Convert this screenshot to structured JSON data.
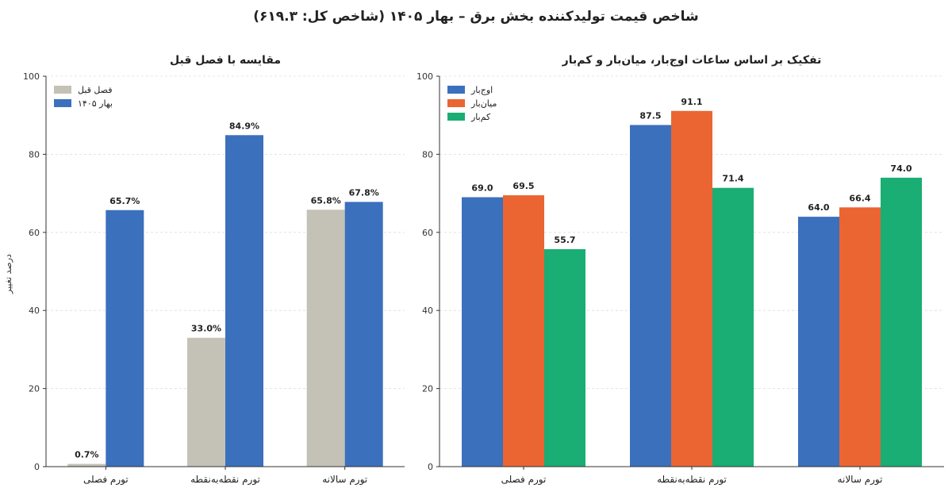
{
  "figure": {
    "title": "شاخص قیمت تولیدکننده بخش برق – بهار ۱۴۰۵ (شاخص کل: ۶۱۹.۳)",
    "ylabel": "درصد تغییر"
  },
  "chart_data": [
    {
      "type": "bar",
      "title": "مقایسه با فصل قبل",
      "categories": [
        "تورم فصلی",
        "تورم نقطه‌به‌نقطه",
        "تورم سالانه"
      ],
      "ylim": [
        0,
        100
      ],
      "yticks": [
        "0",
        "20",
        "40",
        "60",
        "80",
        "100"
      ],
      "grid": true,
      "legend": "top-left",
      "series": [
        {
          "name": "فصل قبل",
          "color": "#c4c2b6",
          "values": [
            0.7,
            33.0,
            65.8
          ],
          "labels": [
            "0.7%",
            "33.0%",
            "65.8%"
          ]
        },
        {
          "name": "بهار ۱۴۰۵",
          "color": "#3b70bd",
          "values": [
            65.7,
            84.9,
            67.8
          ],
          "labels": [
            "65.7%",
            "84.9%",
            "67.8%"
          ]
        }
      ]
    },
    {
      "type": "bar",
      "title": "تفکیک بر اساس ساعات اوج‌بار، میان‌بار و کم‌بار",
      "categories": [
        "تورم فصلی",
        "تورم نقطه‌به‌نقطه",
        "تورم سالانه"
      ],
      "ylim": [
        0,
        100
      ],
      "yticks": [
        "0",
        "20",
        "40",
        "60",
        "80",
        "100"
      ],
      "grid": true,
      "legend": "top-left",
      "series": [
        {
          "name": "اوج‌بار",
          "color": "#3b70bd",
          "values": [
            69.0,
            87.5,
            64.0
          ],
          "labels": [
            "69.0",
            "87.5",
            "64.0"
          ]
        },
        {
          "name": "میان‌بار",
          "color": "#ea6532",
          "values": [
            69.5,
            91.1,
            66.4
          ],
          "labels": [
            "69.5",
            "91.1",
            "66.4"
          ]
        },
        {
          "name": "کم‌بار",
          "color": "#1aad74",
          "values": [
            55.7,
            71.4,
            74.0
          ],
          "labels": [
            "55.7",
            "71.4",
            "74.0"
          ]
        }
      ]
    }
  ]
}
